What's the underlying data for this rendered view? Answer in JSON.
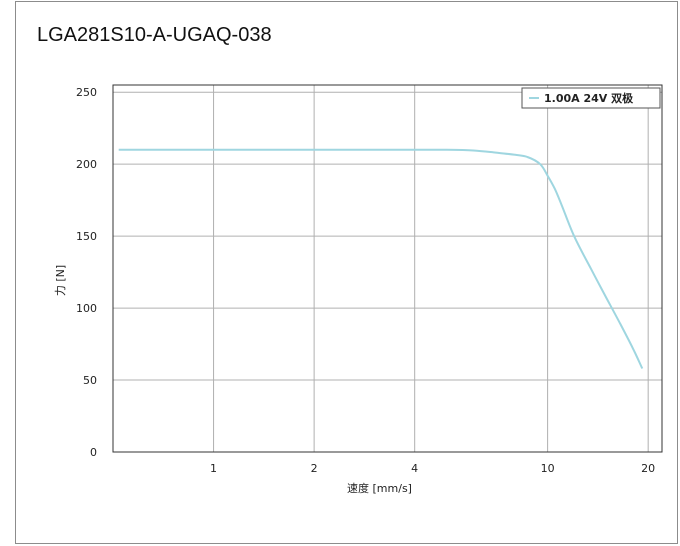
{
  "chart_data": {
    "type": "line",
    "title": "LGA281S10-A-UGAQ-038",
    "xlabel": "速度 [mm/s]",
    "ylabel": "力 [N]",
    "x_scale": "log",
    "xlim": [
      0.5,
      22
    ],
    "ylim": [
      0,
      255
    ],
    "x_ticks": [
      1,
      2,
      4,
      10,
      20
    ],
    "x_tick_labels": [
      "1",
      "2",
      "4",
      "10",
      "20"
    ],
    "y_ticks": [
      0,
      50,
      100,
      150,
      200,
      250
    ],
    "y_tick_labels": [
      "0",
      "50",
      "100",
      "150",
      "200",
      "250"
    ],
    "grid": true,
    "legend_position": "top-right",
    "series": [
      {
        "name": "1.00A 24V 双极",
        "color": "#9fd6e0",
        "x": [
          0.52,
          1,
          2,
          4,
          5,
          6,
          7,
          8,
          8.7,
          9.5,
          10,
          10.5,
          11,
          12,
          13.5,
          15,
          16.5,
          18,
          19.2
        ],
        "y": [
          210,
          210,
          210,
          210,
          210,
          209.5,
          208,
          206.5,
          205,
          200,
          192,
          183,
          172,
          150,
          127,
          107,
          89,
          72,
          58
        ]
      }
    ]
  }
}
